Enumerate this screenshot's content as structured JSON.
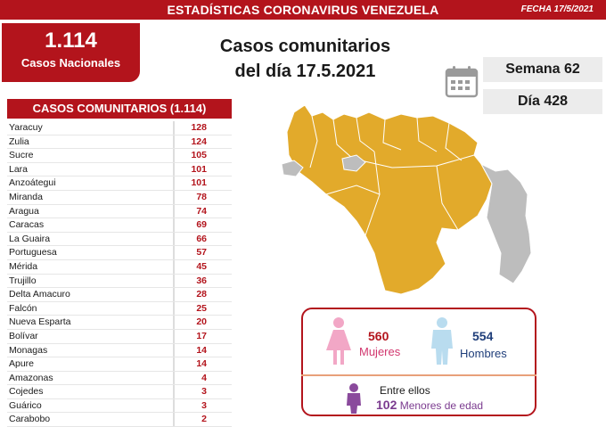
{
  "header": {
    "title": "ESTADÍSTICAS CORONAVIRUS VENEZUELA",
    "date": "FECHA 17/5/2021"
  },
  "national": {
    "count": "1.114",
    "label": "Casos Nacionales"
  },
  "heading": {
    "line1": "Casos comunitarios",
    "line2": "del día 17.5.2021"
  },
  "info": {
    "week": "Semana 62",
    "day": "Día 428"
  },
  "table": {
    "title": "CASOS COMUNITARIOS (1.114)",
    "rows": [
      {
        "name": "Yaracuy",
        "value": "128"
      },
      {
        "name": "Zulia",
        "value": "124"
      },
      {
        "name": "Sucre",
        "value": "105"
      },
      {
        "name": "Lara",
        "value": "101"
      },
      {
        "name": "Anzoátegui",
        "value": "101"
      },
      {
        "name": "Miranda",
        "value": "78"
      },
      {
        "name": "Aragua",
        "value": "74"
      },
      {
        "name": "Caracas",
        "value": "69"
      },
      {
        "name": "La Guaira",
        "value": "66"
      },
      {
        "name": "Portuguesa",
        "value": "57"
      },
      {
        "name": "Mérida",
        "value": "45"
      },
      {
        "name": "Trujillo",
        "value": "36"
      },
      {
        "name": "Delta Amacuro",
        "value": "28"
      },
      {
        "name": "Falcón",
        "value": "25"
      },
      {
        "name": "Nueva Esparta",
        "value": "20"
      },
      {
        "name": "Bolívar",
        "value": "17"
      },
      {
        "name": "Monagas",
        "value": "14"
      },
      {
        "name": "Apure",
        "value": "14"
      },
      {
        "name": "Amazonas",
        "value": "4"
      },
      {
        "name": "Cojedes",
        "value": "3"
      },
      {
        "name": "Guárico",
        "value": "3"
      },
      {
        "name": "Carabobo",
        "value": "2"
      }
    ]
  },
  "gender": {
    "women_count": "560",
    "women_label": "Mujeres",
    "men_count": "554",
    "men_label": "Hombres",
    "kids_intro": "Entre ellos",
    "kids_count": "102",
    "kids_label": "Menores de edad"
  },
  "colors": {
    "brand_red": "#b3141c",
    "map_fill": "#e2aa2b",
    "map_unaffected": "#bdbdbd",
    "women": "#f2a7c6",
    "men": "#b9dcef",
    "kids": "#8a4a9c"
  }
}
